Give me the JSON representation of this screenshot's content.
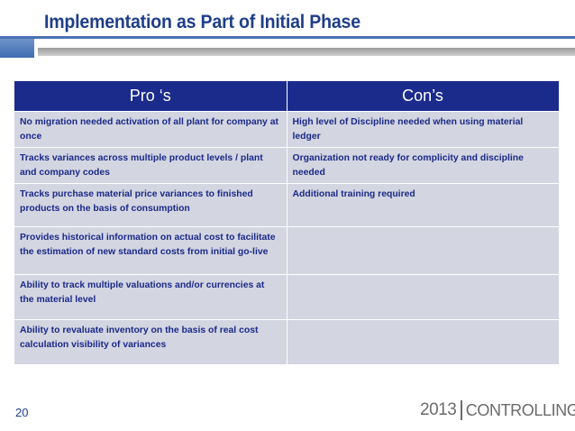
{
  "slide": {
    "title": "Implementation as Part of Initial Phase",
    "page_number": "20"
  },
  "table": {
    "headers": [
      "Pro ‘s",
      "Con’s"
    ],
    "rows": [
      [
        "No migration needed  activation of all plant for company at once",
        "High level of Discipline needed  when using material ledger"
      ],
      [
        "Tracks variances across multiple product levels / plant and company codes",
        "Organization not ready for complicity and discipline needed"
      ],
      [
        "Tracks purchase material price variances to finished products on the basis of consumption",
        "Additional training required"
      ],
      [
        "Provides historical information on actual cost to facilitate the estimation of new standard costs from initial go-live",
        ""
      ],
      [
        "Ability to track multiple valuations and/or currencies at the material level",
        ""
      ],
      [
        "Ability to revaluate inventory on the basis of real cost calculation visibility of variances",
        ""
      ]
    ]
  },
  "logo": {
    "year": "2013",
    "word": "CONTROLLING"
  },
  "colors": {
    "title": "#1f3e8a",
    "header_bg": "#1b2b8c",
    "cell_bg": "#d3d5e1",
    "cell_text": "#1a2a88"
  }
}
